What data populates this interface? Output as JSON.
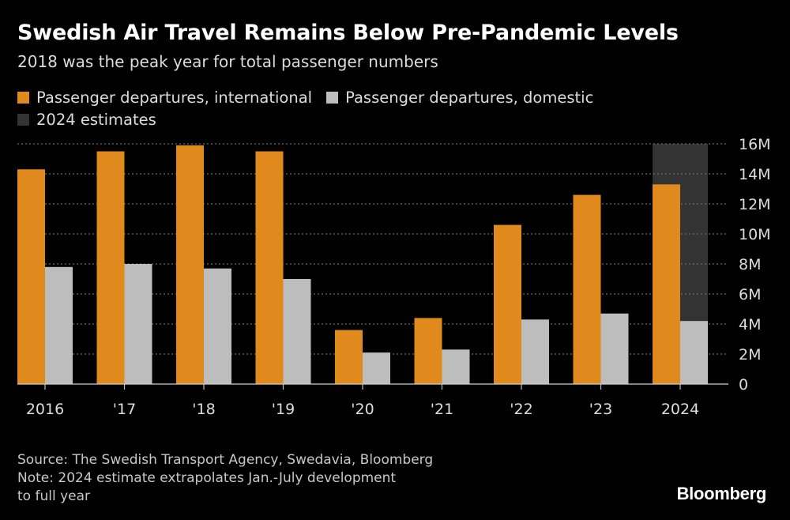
{
  "title": "Swedish Air Travel Remains Below Pre-Pandemic Levels",
  "subtitle": "2018 was the peak year for total passenger numbers",
  "legend": {
    "international": "Passenger departures, international",
    "domestic": "Passenger departures, domestic",
    "estimates": "2024 estimates"
  },
  "colors": {
    "international": "#e08a1e",
    "domestic": "#bdbdbd",
    "estimate_band": "#333333",
    "grid": "#6a6a6a",
    "axis_text": "#dcdcdc"
  },
  "footer": {
    "source": "Source: The Swedish Transport Agency, Swedavia, Bloomberg",
    "note_line1": "Note: 2024 estimate extrapolates Jan.-July development",
    "note_line2": "to full year"
  },
  "brand": "Bloomberg",
  "chart_data": {
    "type": "bar",
    "categories": [
      "2016",
      "'17",
      "'18",
      "'19",
      "'20",
      "'21",
      "'22",
      "'23",
      "2024"
    ],
    "series": [
      {
        "name": "Passenger departures, international",
        "values": [
          14.3,
          15.5,
          15.9,
          15.5,
          3.6,
          4.4,
          10.6,
          12.6,
          13.3
        ]
      },
      {
        "name": "Passenger departures, domestic",
        "values": [
          7.8,
          8.0,
          7.7,
          7.0,
          2.1,
          2.3,
          4.3,
          4.7,
          4.2
        ]
      }
    ],
    "unit": "M",
    "ylim": [
      0,
      16
    ],
    "yticks": [
      0,
      2,
      4,
      6,
      8,
      10,
      12,
      14,
      16
    ],
    "ytick_labels": [
      "0",
      "2M",
      "4M",
      "6M",
      "8M",
      "10M",
      "12M",
      "14M",
      "16M"
    ],
    "y_axis_side": "right",
    "grid": true,
    "highlight_category": "2024",
    "highlight_label": "2024 estimates"
  }
}
